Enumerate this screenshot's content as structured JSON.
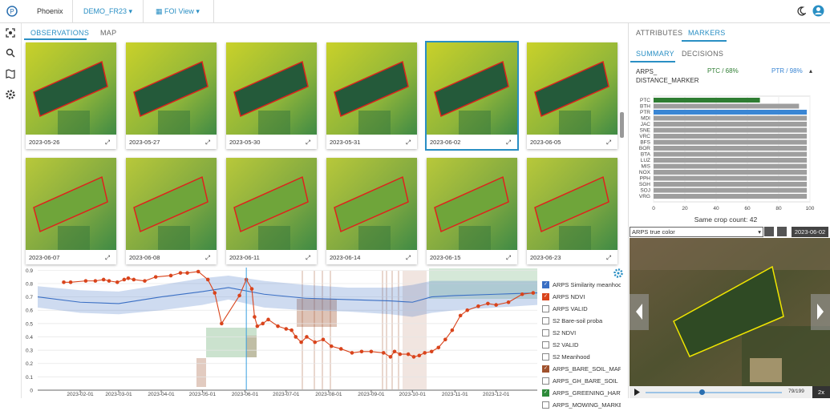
{
  "top_bar": {
    "app": "Phoenix",
    "project": "DEMO_FR23",
    "view": "FOI View"
  },
  "main_tabs": [
    "OBSERVATIONS",
    "MAP"
  ],
  "thumbnails": {
    "dates": [
      "2023-05-26",
      "2023-05-27",
      "2023-05-30",
      "2023-05-31",
      "2023-06-02",
      "2023-06-05",
      "2023-06-07",
      "2023-06-08",
      "2023-06-11",
      "2023-06-14",
      "2023-06-15",
      "2023-06-23"
    ],
    "selected": 4
  },
  "side_tabs": [
    "ATTRIBUTES",
    "MARKERS"
  ],
  "sub_tabs": [
    "SUMMARY",
    "DECISIONS"
  ],
  "marker": {
    "name_line1": "ARPS_",
    "name_line2": "DISTANCE_MARKER",
    "left": "PTC / 68%",
    "right": "PTR / 98%",
    "count": "Same crop count: 42"
  },
  "viewer": {
    "layer": "ARPS true color",
    "date": "2023-06-02",
    "counter": "79/199",
    "speed": "2x"
  },
  "chart_data": [
    {
      "type": "line",
      "xlim": [
        "2023-01-01",
        "2023-12-31"
      ],
      "ylim": [
        0,
        0.92
      ],
      "yticks": [
        0.9,
        0.8,
        0.7,
        0.6,
        0.5,
        0.4,
        0.3,
        0.2,
        0.1,
        0
      ],
      "xticks": [
        "2023-02-01",
        "2023-03-01",
        "2023-04-01",
        "2023-05-01",
        "2023-06-01",
        "2023-07-01",
        "2023-08-01",
        "2023-09-01",
        "2023-10-01",
        "2023-11-01",
        "2023-12-01"
      ],
      "series": [
        {
          "name": "ARPS Similarity meanhood",
          "color": "#3a6fc4",
          "checked": true,
          "x": [
            "2023-01-01",
            "2023-02-01",
            "2023-03-01",
            "2023-04-01",
            "2023-05-01",
            "2023-05-20",
            "2023-06-15",
            "2023-07-15",
            "2023-08-15",
            "2023-09-15",
            "2023-10-01",
            "2023-10-15",
            "2023-11-01",
            "2023-12-01",
            "2023-12-31"
          ],
          "values": [
            0.7,
            0.66,
            0.65,
            0.7,
            0.74,
            0.77,
            0.72,
            0.69,
            0.68,
            0.67,
            0.66,
            0.7,
            0.71,
            0.72,
            0.73
          ],
          "lower": [
            0.62,
            0.58,
            0.57,
            0.6,
            0.64,
            0.68,
            0.62,
            0.6,
            0.59,
            0.57,
            0.55,
            0.58,
            0.6,
            0.62,
            0.64
          ],
          "upper": [
            0.78,
            0.75,
            0.74,
            0.79,
            0.84,
            0.86,
            0.82,
            0.79,
            0.77,
            0.77,
            0.79,
            0.82,
            0.82,
            0.82,
            0.82
          ]
        },
        {
          "name": "ARPS NDVI",
          "color": "#d9441c",
          "checked": true,
          "x": [
            "2023-01-20",
            "2023-01-25",
            "2023-02-05",
            "2023-02-12",
            "2023-02-18",
            "2023-02-22",
            "2023-02-28",
            "2023-03-05",
            "2023-03-08",
            "2023-03-12",
            "2023-03-20",
            "2023-03-28",
            "2023-04-08",
            "2023-04-15",
            "2023-04-20",
            "2023-04-28",
            "2023-05-05",
            "2023-05-10",
            "2023-05-15",
            "2023-05-28",
            "2023-06-02",
            "2023-06-06",
            "2023-06-08",
            "2023-06-10",
            "2023-06-14",
            "2023-06-18",
            "2023-06-25",
            "2023-07-01",
            "2023-07-05",
            "2023-07-08",
            "2023-07-12",
            "2023-07-16",
            "2023-07-22",
            "2023-07-28",
            "2023-08-03",
            "2023-08-10",
            "2023-08-18",
            "2023-08-25",
            "2023-09-01",
            "2023-09-10",
            "2023-09-15",
            "2023-09-18",
            "2023-09-22",
            "2023-09-28",
            "2023-10-02",
            "2023-10-06",
            "2023-10-10",
            "2023-10-15",
            "2023-10-20",
            "2023-10-25",
            "2023-10-30",
            "2023-11-05",
            "2023-11-10",
            "2023-11-18",
            "2023-11-25",
            "2023-12-01",
            "2023-12-10",
            "2023-12-20",
            "2023-12-28"
          ],
          "values": [
            0.81,
            0.81,
            0.82,
            0.82,
            0.83,
            0.82,
            0.81,
            0.83,
            0.84,
            0.83,
            0.82,
            0.85,
            0.86,
            0.88,
            0.88,
            0.89,
            0.83,
            0.73,
            0.5,
            0.71,
            0.83,
            0.76,
            0.55,
            0.48,
            0.5,
            0.53,
            0.48,
            0.46,
            0.45,
            0.4,
            0.36,
            0.4,
            0.36,
            0.38,
            0.33,
            0.31,
            0.28,
            0.29,
            0.29,
            0.28,
            0.25,
            0.29,
            0.27,
            0.27,
            0.25,
            0.26,
            0.28,
            0.29,
            0.32,
            0.38,
            0.45,
            0.56,
            0.6,
            0.63,
            0.65,
            0.64,
            0.66,
            0.72,
            0.73
          ]
        },
        {
          "name": "ARPS VALID",
          "color": "#888888",
          "checked": false
        },
        {
          "name": "S2 Bare-soil proba",
          "color": "#888888",
          "checked": false
        },
        {
          "name": "S2 NDVI",
          "color": "#888888",
          "checked": false
        },
        {
          "name": "S2 VALID",
          "color": "#888888",
          "checked": false
        },
        {
          "name": "S2 Meanhood",
          "color": "#888888",
          "checked": false
        },
        {
          "name": "ARPS_BARE_SOIL_MARK",
          "color": "#a0522d",
          "checked": true
        },
        {
          "name": "ARPS_GH_BARE_SOIL",
          "color": "#888888",
          "checked": false
        },
        {
          "name": "ARPS_GREENING_HARVE",
          "color": "#2e8b3a",
          "checked": true
        },
        {
          "name": "ARPS_MOWING_MARKER",
          "color": "#888888",
          "checked": false
        }
      ]
    },
    {
      "type": "bar",
      "orientation": "horizontal",
      "categories": [
        "PTC",
        "BTH",
        "PTR",
        "MDI",
        "JAC",
        "SNE",
        "VRC",
        "BFS",
        "BOR",
        "BTA",
        "LUZ",
        "MIS",
        "NOX",
        "PPH",
        "SGH",
        "SOJ",
        "VRG"
      ],
      "values": [
        68,
        93,
        98,
        98,
        98,
        98,
        98,
        98,
        98,
        98,
        98,
        98,
        98,
        98,
        98,
        98,
        98
      ],
      "colors": [
        "#2e7d32",
        "#9e9e9e",
        "#3a86d4",
        "#9e9e9e",
        "#9e9e9e",
        "#9e9e9e",
        "#9e9e9e",
        "#9e9e9e",
        "#9e9e9e",
        "#9e9e9e",
        "#9e9e9e",
        "#9e9e9e",
        "#9e9e9e",
        "#9e9e9e",
        "#9e9e9e",
        "#9e9e9e",
        "#9e9e9e"
      ],
      "xlim": [
        0,
        100
      ],
      "xticks": [
        0,
        20,
        40,
        60,
        80,
        100
      ],
      "grid": true
    }
  ]
}
